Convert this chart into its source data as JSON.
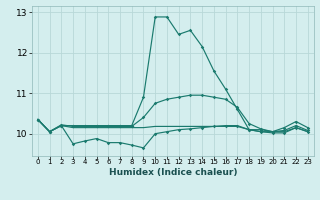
{
  "xlabel": "Humidex (Indice chaleur)",
  "bg_color": "#d4eeee",
  "grid_color": "#b8d8d8",
  "line_color": "#1a7a6e",
  "xlim": [
    -0.5,
    23.5
  ],
  "ylim": [
    9.45,
    13.15
  ],
  "yticks": [
    10,
    11,
    12,
    13
  ],
  "xticks": [
    0,
    1,
    2,
    3,
    4,
    5,
    6,
    7,
    8,
    9,
    10,
    11,
    12,
    13,
    14,
    15,
    16,
    17,
    18,
    19,
    20,
    21,
    22,
    23
  ],
  "line1_x": [
    0,
    1,
    2,
    3,
    4,
    5,
    6,
    7,
    8,
    9,
    10,
    11,
    12,
    13,
    14,
    15,
    16,
    17,
    18,
    19,
    20,
    21,
    22,
    23
  ],
  "line1_y": [
    10.35,
    10.05,
    10.2,
    10.2,
    10.2,
    10.2,
    10.2,
    10.2,
    10.2,
    10.9,
    12.88,
    12.88,
    12.45,
    12.55,
    12.15,
    11.55,
    11.1,
    10.6,
    10.1,
    10.1,
    10.05,
    10.15,
    10.3,
    10.15
  ],
  "line2_x": [
    0,
    1,
    2,
    3,
    4,
    5,
    6,
    7,
    8,
    9,
    10,
    11,
    12,
    13,
    14,
    15,
    16,
    17,
    18,
    19,
    20,
    21,
    22,
    23
  ],
  "line2_y": [
    10.35,
    10.05,
    10.2,
    9.75,
    9.82,
    9.88,
    9.78,
    9.78,
    9.72,
    9.65,
    10.0,
    10.05,
    10.1,
    10.12,
    10.15,
    10.18,
    10.2,
    10.2,
    10.1,
    10.05,
    10.02,
    10.02,
    10.15,
    10.05
  ],
  "line3_x": [
    0,
    1,
    2,
    3,
    4,
    5,
    6,
    7,
    8,
    9,
    10,
    11,
    12,
    13,
    14,
    15,
    16,
    17,
    18,
    19,
    20,
    21,
    22,
    23
  ],
  "line3_y": [
    10.35,
    10.05,
    10.2,
    10.15,
    10.15,
    10.15,
    10.15,
    10.15,
    10.15,
    10.15,
    10.18,
    10.18,
    10.18,
    10.18,
    10.18,
    10.18,
    10.18,
    10.18,
    10.1,
    10.05,
    10.05,
    10.05,
    10.15,
    10.05
  ],
  "line4_x": [
    0,
    1,
    2,
    3,
    4,
    5,
    6,
    7,
    8,
    9,
    10,
    11,
    12,
    13,
    14,
    15,
    16,
    17,
    18,
    19,
    20,
    21,
    22,
    23
  ],
  "line4_y": [
    10.35,
    10.05,
    10.22,
    10.18,
    10.18,
    10.18,
    10.18,
    10.18,
    10.18,
    10.4,
    10.75,
    10.85,
    10.9,
    10.95,
    10.95,
    10.9,
    10.85,
    10.65,
    10.25,
    10.12,
    10.05,
    10.08,
    10.2,
    10.08
  ]
}
